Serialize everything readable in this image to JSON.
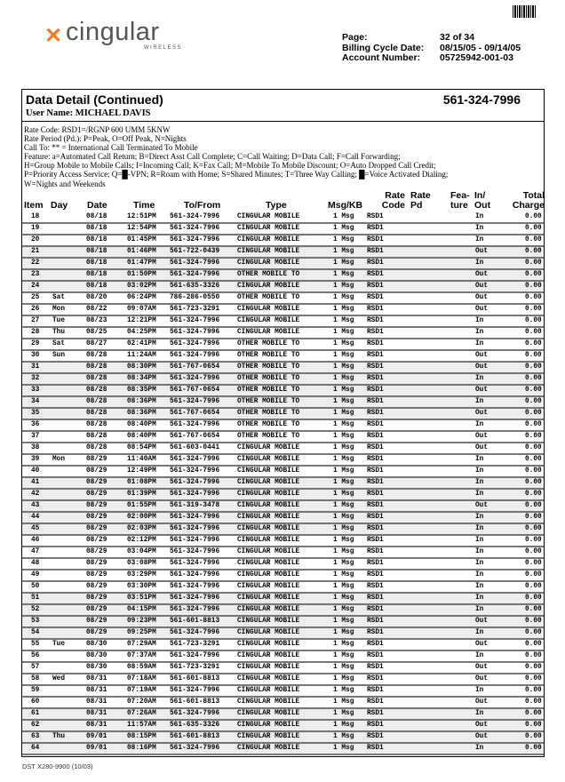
{
  "header": {
    "brand": "cingular",
    "brand_sub": "WIRELESS",
    "page_label": "Page:",
    "page_value": "32 of 34",
    "cycle_label": "Billing Cycle Date:",
    "cycle_value": "08/15/05 - 09/14/05",
    "account_label": "Account Number:",
    "account_value": "05725942-001-03"
  },
  "section": {
    "title": "Data Detail (Continued)",
    "phone": "561-324-7996",
    "user": "User Name: MICHAEL DAVIS"
  },
  "legend": [
    "Rate Code: RSD1=/RGNP 600 UMM 5KNW",
    "Rate Period (Pd.): P=Peak, O=Off Peak, N=Nights",
    "Call To: ** = International Call Terminated To Mobile",
    "Feature: a=Automated Call Return; B=Direct Asst Call Complete; C=Call Waiting; D=Data Call; F=Call Forwarding;",
    "H=Group Mobile to Mobile Calls; I=Incoming Call; K=Fax Call; M=Mobile To Mobile Discount; O=Auto Dropped Call Credit;",
    "P=Priority Access Service; Q=█-VPN; R=Roam with Home; S=Shared Minutes; T=Three Way Calling; █=Voice Activated Dialing;",
    "W=Nights and Weekends"
  ],
  "columns": {
    "item": "Item",
    "day": "Day",
    "date": "Date",
    "time": "Time",
    "tofrom": "To/From",
    "type": "Type",
    "msg": "Msg/KB",
    "ratecode": "Rate\nCode",
    "ratepd": "Rate\nPd",
    "feature": "Fea-\nture",
    "inout": "In/\nOut",
    "charge": "Total\nCharge"
  },
  "rows": [
    [
      "18",
      "",
      "08/18",
      "12:51PM",
      "561-324-7996",
      "CINGULAR MOBILE",
      "1 Msg",
      "RSD1",
      "In",
      "0.00"
    ],
    [
      "19",
      "",
      "08/18",
      "12:54PM",
      "561-324-7996",
      "CINGULAR MOBILE",
      "1 Msg",
      "RSD1",
      "In",
      "0.00"
    ],
    [
      "20",
      "",
      "08/18",
      "01:45PM",
      "561-324-7996",
      "CINGULAR MOBILE",
      "1 Msg",
      "RSD1",
      "In",
      "0.00"
    ],
    [
      "21",
      "",
      "08/18",
      "01:46PM",
      "561-722-0439",
      "CINGULAR MOBILE",
      "1 Msg",
      "RSD1",
      "Out",
      "0.00"
    ],
    [
      "22",
      "",
      "08/18",
      "01:47PM",
      "561-324-7996",
      "CINGULAR MOBILE",
      "1 Msg",
      "RSD1",
      "In",
      "0.00"
    ],
    [
      "23",
      "",
      "08/18",
      "01:50PM",
      "561-324-7996",
      "OTHER MOBILE TO",
      "1 Msg",
      "RSD1",
      "Out",
      "0.00"
    ],
    [
      "24",
      "",
      "08/18",
      "03:02PM",
      "561-635-3326",
      "CINGULAR MOBILE",
      "1 Msg",
      "RSD1",
      "Out",
      "0.00"
    ],
    [
      "25",
      "Sat",
      "08/20",
      "06:24PM",
      "786-286-0550",
      "OTHER MOBILE TO",
      "1 Msg",
      "RSD1",
      "Out",
      "0.00"
    ],
    [
      "26",
      "Mon",
      "08/22",
      "09:07AM",
      "561-723-3291",
      "CINGULAR MOBILE",
      "1 Msg",
      "RSD1",
      "Out",
      "0.00"
    ],
    [
      "27",
      "Tue",
      "08/23",
      "12:21PM",
      "561-324-7996",
      "CINGULAR MOBILE",
      "1 Msg",
      "RSD1",
      "In",
      "0.00"
    ],
    [
      "28",
      "Thu",
      "08/25",
      "04:25PM",
      "561-324-7996",
      "CINGULAR MOBILE",
      "1 Msg",
      "RSD1",
      "In",
      "0.00"
    ],
    [
      "29",
      "Sat",
      "08/27",
      "02:41PM",
      "561-324-7996",
      "OTHER MOBILE TO",
      "1 Msg",
      "RSD1",
      "In",
      "0.00"
    ],
    [
      "30",
      "Sun",
      "08/28",
      "11:24AM",
      "561-324-7996",
      "OTHER MOBILE TO",
      "1 Msg",
      "RSD1",
      "Out",
      "0.00"
    ],
    [
      "31",
      "",
      "08/28",
      "08:30PM",
      "561-767-0654",
      "OTHER MOBILE TO",
      "1 Msg",
      "RSD1",
      "Out",
      "0.00"
    ],
    [
      "32",
      "",
      "08/28",
      "08:34PM",
      "561-324-7996",
      "OTHER MOBILE TO",
      "1 Msg",
      "RSD1",
      "In",
      "0.00"
    ],
    [
      "33",
      "",
      "08/28",
      "08:35PM",
      "561-767-0654",
      "OTHER MOBILE TO",
      "1 Msg",
      "RSD1",
      "Out",
      "0.00"
    ],
    [
      "34",
      "",
      "08/28",
      "08:36PM",
      "561-324-7996",
      "OTHER MOBILE TO",
      "1 Msg",
      "RSD1",
      "In",
      "0.00"
    ],
    [
      "35",
      "",
      "08/28",
      "08:36PM",
      "561-767-0654",
      "OTHER MOBILE TO",
      "1 Msg",
      "RSD1",
      "Out",
      "0.00"
    ],
    [
      "36",
      "",
      "08/28",
      "08:40PM",
      "561-324-7996",
      "OTHER MOBILE TO",
      "1 Msg",
      "RSD1",
      "In",
      "0.00"
    ],
    [
      "37",
      "",
      "08/28",
      "08:40PM",
      "561-767-0654",
      "OTHER MOBILE TO",
      "1 Msg",
      "RSD1",
      "Out",
      "0.00"
    ],
    [
      "38",
      "",
      "08/28",
      "08:54PM",
      "561-603-0441",
      "CINGULAR MOBILE",
      "1 Msg",
      "RSD1",
      "Out",
      "0.00"
    ],
    [
      "39",
      "Mon",
      "08/29",
      "11:40AM",
      "561-324-7996",
      "CINGULAR MOBILE",
      "1 Msg",
      "RSD1",
      "In",
      "0.00"
    ],
    [
      "40",
      "",
      "08/29",
      "12:49PM",
      "561-324-7996",
      "CINGULAR MOBILE",
      "1 Msg",
      "RSD1",
      "In",
      "0.00"
    ],
    [
      "41",
      "",
      "08/29",
      "01:08PM",
      "561-324-7996",
      "CINGULAR MOBILE",
      "1 Msg",
      "RSD1",
      "In",
      "0.00"
    ],
    [
      "42",
      "",
      "08/29",
      "01:39PM",
      "561-324-7996",
      "CINGULAR MOBILE",
      "1 Msg",
      "RSD1",
      "In",
      "0.00"
    ],
    [
      "43",
      "",
      "08/29",
      "01:55PM",
      "561-319-3478",
      "CINGULAR MOBILE",
      "1 Msg",
      "RSD1",
      "Out",
      "0.00"
    ],
    [
      "44",
      "",
      "08/29",
      "02:00PM",
      "561-324-7996",
      "CINGULAR MOBILE",
      "1 Msg",
      "RSD1",
      "In",
      "0.00"
    ],
    [
      "45",
      "",
      "08/29",
      "02:03PM",
      "561-324-7996",
      "CINGULAR MOBILE",
      "1 Msg",
      "RSD1",
      "In",
      "0.00"
    ],
    [
      "46",
      "",
      "08/29",
      "02:12PM",
      "561-324-7996",
      "CINGULAR MOBILE",
      "1 Msg",
      "RSD1",
      "In",
      "0.00"
    ],
    [
      "47",
      "",
      "08/29",
      "03:04PM",
      "561-324-7996",
      "CINGULAR MOBILE",
      "1 Msg",
      "RSD1",
      "In",
      "0.00"
    ],
    [
      "48",
      "",
      "08/29",
      "03:08PM",
      "561-324-7996",
      "CINGULAR MOBILE",
      "1 Msg",
      "RSD1",
      "In",
      "0.00"
    ],
    [
      "49",
      "",
      "08/29",
      "03:29PM",
      "561-324-7996",
      "CINGULAR MOBILE",
      "1 Msg",
      "RSD1",
      "In",
      "0.00"
    ],
    [
      "50",
      "",
      "08/29",
      "03:30PM",
      "561-324-7996",
      "CINGULAR MOBILE",
      "1 Msg",
      "RSD1",
      "In",
      "0.00"
    ],
    [
      "51",
      "",
      "08/29",
      "03:51PM",
      "561-324-7996",
      "CINGULAR MOBILE",
      "1 Msg",
      "RSD1",
      "In",
      "0.00"
    ],
    [
      "52",
      "",
      "08/29",
      "04:15PM",
      "561-324-7996",
      "CINGULAR MOBILE",
      "1 Msg",
      "RSD1",
      "In",
      "0.00"
    ],
    [
      "53",
      "",
      "08/29",
      "09:23PM",
      "561-601-8813",
      "CINGULAR MOBILE",
      "1 Msg",
      "RSD1",
      "Out",
      "0.00"
    ],
    [
      "54",
      "",
      "08/29",
      "09:25PM",
      "561-324-7996",
      "CINGULAR MOBILE",
      "1 Msg",
      "RSD1",
      "In",
      "0.00"
    ],
    [
      "55",
      "Tue",
      "08/30",
      "07:29AM",
      "561-723-3291",
      "CINGULAR MOBILE",
      "1 Msg",
      "RSD1",
      "Out",
      "0.00"
    ],
    [
      "56",
      "",
      "08/30",
      "07:37AM",
      "561-324-7996",
      "CINGULAR MOBILE",
      "1 Msg",
      "RSD1",
      "In",
      "0.00"
    ],
    [
      "57",
      "",
      "08/30",
      "08:59AM",
      "561-723-3291",
      "CINGULAR MOBILE",
      "1 Msg",
      "RSD1",
      "Out",
      "0.00"
    ],
    [
      "58",
      "Wed",
      "08/31",
      "07:18AM",
      "561-601-8813",
      "CINGULAR MOBILE",
      "1 Msg",
      "RSD1",
      "Out",
      "0.00"
    ],
    [
      "59",
      "",
      "08/31",
      "07:19AM",
      "561-324-7996",
      "CINGULAR MOBILE",
      "1 Msg",
      "RSD1",
      "In",
      "0.00"
    ],
    [
      "60",
      "",
      "08/31",
      "07:20AM",
      "561-601-8813",
      "CINGULAR MOBILE",
      "1 Msg",
      "RSD1",
      "Out",
      "0.00"
    ],
    [
      "61",
      "",
      "08/31",
      "07:26AM",
      "561-324-7996",
      "CINGULAR MOBILE",
      "1 Msg",
      "RSD1",
      "In",
      "0.00"
    ],
    [
      "62",
      "",
      "08/31",
      "11:57AM",
      "561-635-3326",
      "CINGULAR MOBILE",
      "1 Msg",
      "RSD1",
      "Out",
      "0.00"
    ],
    [
      "63",
      "Thu",
      "09/01",
      "08:15PM",
      "561-601-8813",
      "CINGULAR MOBILE",
      "1 Msg",
      "RSD1",
      "Out",
      "0.00"
    ],
    [
      "64",
      "",
      "09/01",
      "08:16PM",
      "561-324-7996",
      "CINGULAR MOBILE",
      "1 Msg",
      "RSD1",
      "In",
      "0.00"
    ]
  ],
  "footer": "DST X280-9900 (10/03)"
}
